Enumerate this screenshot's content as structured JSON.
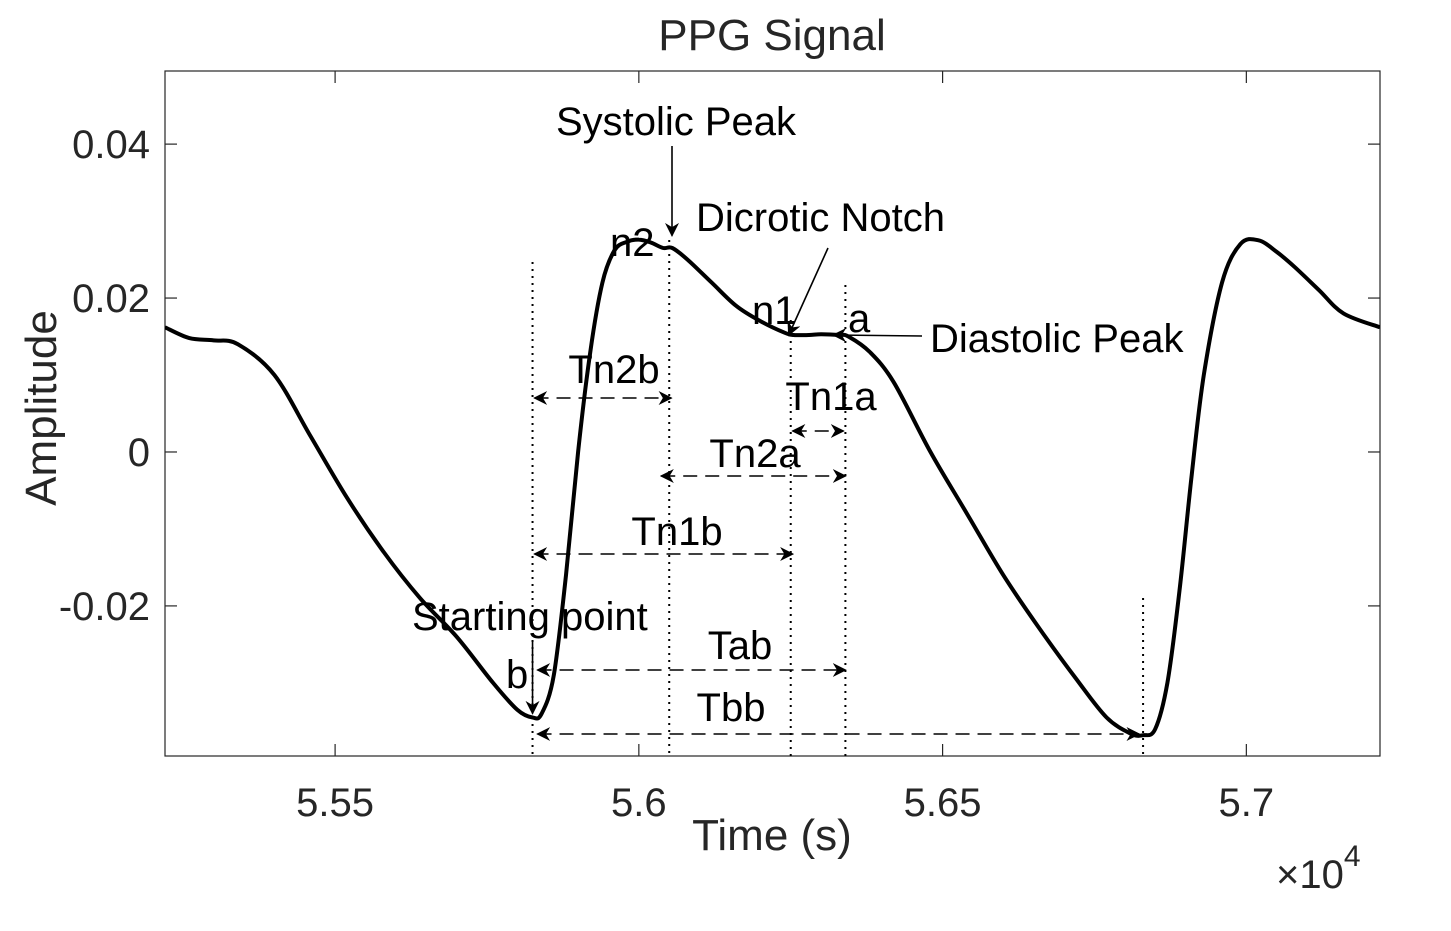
{
  "chart_data": {
    "type": "line",
    "title": "PPG Signal",
    "xlabel": "Time (s)",
    "ylabel": "Amplitude",
    "x_exponent_label": "×10",
    "x_exponent_power": "4",
    "xlim": [
      55220,
      57220
    ],
    "ylim": [
      -0.0395,
      0.0495
    ],
    "x_ticks": [
      55500,
      56000,
      56500,
      57000
    ],
    "x_tick_labels": [
      "5.55",
      "5.6",
      "5.65",
      "5.7"
    ],
    "y_ticks": [
      0.04,
      0.02,
      0,
      -0.02
    ],
    "y_tick_labels": [
      "0.04",
      "0.02",
      "0",
      "-0.02"
    ],
    "grid": false,
    "series": [
      {
        "color": "#000000",
        "x": [
          55220,
          55260,
          55300,
          55340,
          55400,
          55460,
          55520,
          55580,
          55640,
          55700,
          55760,
          55800,
          55825,
          55840,
          55860,
          55880,
          55900,
          55920,
          55940,
          55960,
          55980,
          56000,
          56020,
          56040,
          56055,
          56080,
          56120,
          56160,
          56200,
          56240,
          56255,
          56280,
          56300,
          56330,
          56345,
          56380,
          56420,
          56480,
          56540,
          56600,
          56660,
          56720,
          56770,
          56810,
          56830,
          56850,
          56870,
          56890,
          56910,
          56930,
          56960,
          56990,
          57020,
          57050,
          57080,
          57120,
          57160,
          57220
        ],
        "y": [
          0.0162,
          0.0148,
          0.0145,
          0.014,
          0.01,
          0.002,
          -0.006,
          -0.013,
          -0.019,
          -0.024,
          -0.03,
          -0.0335,
          -0.0345,
          -0.034,
          -0.029,
          -0.016,
          0.0,
          0.013,
          0.022,
          0.0262,
          0.0273,
          0.0276,
          0.0272,
          0.0265,
          0.0265,
          0.025,
          0.022,
          0.019,
          0.017,
          0.0155,
          0.0152,
          0.0152,
          0.0153,
          0.0152,
          0.015,
          0.013,
          0.009,
          0.0,
          -0.008,
          -0.016,
          -0.023,
          -0.0295,
          -0.0345,
          -0.0366,
          -0.0368,
          -0.036,
          -0.03,
          -0.018,
          -0.003,
          0.01,
          0.022,
          0.027,
          0.0275,
          0.026,
          0.024,
          0.021,
          0.018,
          0.0162
        ]
      }
    ],
    "annotations": {
      "systolic_peak": "Systolic Peak",
      "dicrotic_notch": "Dicrotic Notch",
      "diastolic_peak": "Diastolic Peak",
      "starting_point": "Starting point",
      "n2": "n2",
      "n1": "n1",
      "a": "a",
      "b": "b",
      "Tn2b": "Tn2b",
      "Tn1a": "Tn1a",
      "Tn2a": "Tn2a",
      "Tn1b": "Tn1b",
      "Tab": "Tab",
      "Tbb": "Tbb"
    },
    "markers": {
      "b_x": 55825,
      "n2_x": 56050,
      "n1_x": 56250,
      "a_x": 56340,
      "b2_x": 56830,
      "b_y": -0.0345,
      "n2_y": 0.0276,
      "n1_y": 0.0152,
      "a_y": 0.0152,
      "b2_y": -0.0368
    }
  }
}
